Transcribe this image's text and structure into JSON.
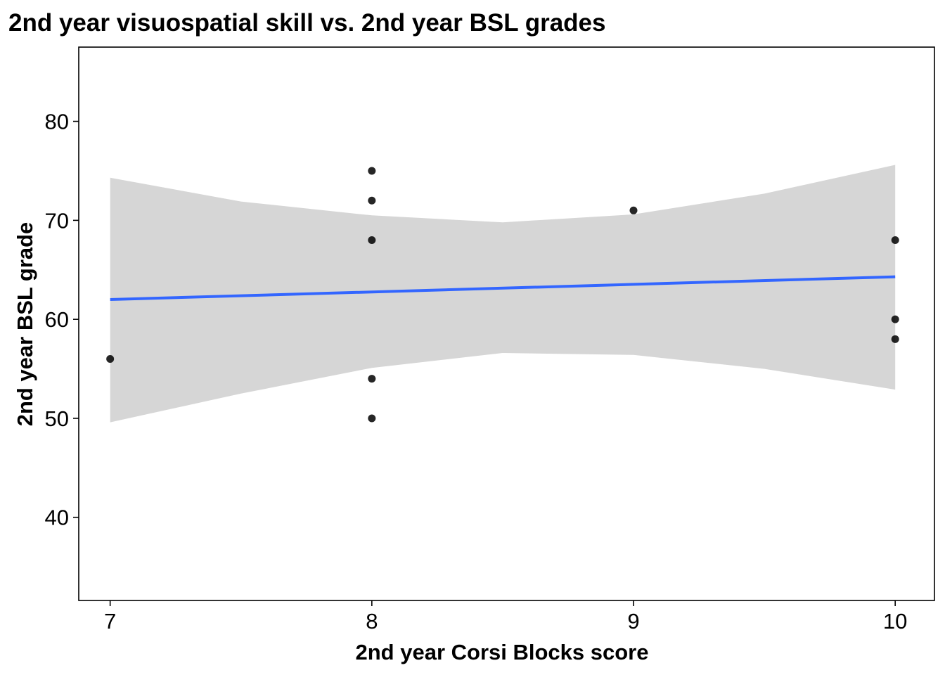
{
  "chart_data": {
    "type": "scatter",
    "title": "2nd year visuospatial skill vs. 2nd year BSL grades",
    "xlabel": "2nd year Corsi Blocks score",
    "ylabel": "2nd year BSL grade",
    "xlim": [
      6.88,
      10.15
    ],
    "ylim": [
      31.6,
      87.5
    ],
    "xticks": [
      7,
      8,
      9,
      10
    ],
    "yticks": [
      40,
      50,
      60,
      70,
      80
    ],
    "grid": false,
    "legend": "none",
    "points": [
      {
        "x": 7,
        "y": 56
      },
      {
        "x": 8,
        "y": 75
      },
      {
        "x": 8,
        "y": 72
      },
      {
        "x": 8,
        "y": 68
      },
      {
        "x": 8,
        "y": 54
      },
      {
        "x": 8,
        "y": 50
      },
      {
        "x": 9,
        "y": 71
      },
      {
        "x": 10,
        "y": 68
      },
      {
        "x": 10,
        "y": 60
      },
      {
        "x": 10,
        "y": 58
      }
    ],
    "fit_line": {
      "x": [
        7,
        10
      ],
      "y": [
        62.0,
        64.3
      ]
    },
    "confidence_band": {
      "x": [
        7,
        7.5,
        8,
        8.5,
        9,
        9.5,
        10
      ],
      "upper": [
        74.3,
        71.9,
        70.5,
        69.8,
        70.6,
        72.7,
        75.6
      ],
      "lower": [
        49.6,
        52.5,
        55.1,
        56.6,
        56.4,
        55.0,
        52.9
      ]
    },
    "colors": {
      "points": "#000000",
      "fit_line": "#3366ff",
      "band": "#d6d6d6",
      "panel_border": "#000000"
    }
  }
}
